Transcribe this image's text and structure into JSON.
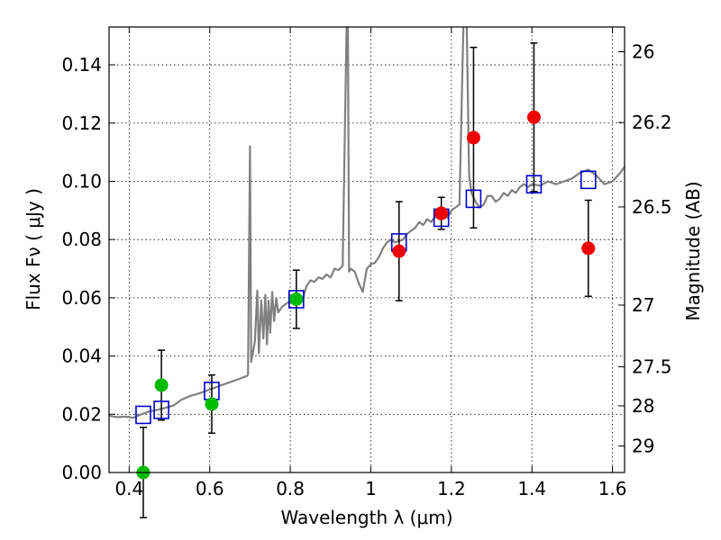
{
  "chart_data": {
    "type": "scatter",
    "title": "",
    "xlabel": "Wavelength  λ (μm)",
    "ylabel": "Flux  Fν  ( μJy )",
    "ylabel_right": "Magnitude (AB)",
    "xlim": [
      0.35,
      1.63
    ],
    "ylim": [
      0.0,
      0.153
    ],
    "grid": true,
    "x_ticks": [
      0.4,
      0.6,
      0.8,
      1.0,
      1.2,
      1.4,
      1.6
    ],
    "x_tick_labels": [
      "0.4",
      "0.6",
      "0.8",
      "1",
      "1.2",
      "1.4",
      "1.6"
    ],
    "y_ticks": [
      0.0,
      0.02,
      0.04,
      0.06,
      0.08,
      0.1,
      0.12,
      0.14
    ],
    "y_tick_labels": [
      "0.00",
      "0.02",
      "0.04",
      "0.06",
      "0.08",
      "0.10",
      "0.12",
      "0.14"
    ],
    "right_ticks": [
      {
        "label": "26",
        "flux": 0.1445
      },
      {
        "label": "26.2",
        "flux": 0.1202
      },
      {
        "label": "26.5",
        "flux": 0.0912
      },
      {
        "label": "27",
        "flux": 0.0575
      },
      {
        "label": "27.5",
        "flux": 0.0363
      },
      {
        "label": "28",
        "flux": 0.0229
      },
      {
        "label": "29",
        "flux": 0.0091
      }
    ],
    "series": [
      {
        "name": "Model spectrum",
        "kind": "line",
        "color": "#808080",
        "points": [
          [
            0.35,
            0.0195
          ],
          [
            0.37,
            0.019
          ],
          [
            0.39,
            0.0192
          ],
          [
            0.41,
            0.0188
          ],
          [
            0.43,
            0.02
          ],
          [
            0.45,
            0.021
          ],
          [
            0.47,
            0.0215
          ],
          [
            0.49,
            0.0222
          ],
          [
            0.51,
            0.023
          ],
          [
            0.53,
            0.025
          ],
          [
            0.55,
            0.0262
          ],
          [
            0.57,
            0.027
          ],
          [
            0.59,
            0.028
          ],
          [
            0.61,
            0.029
          ],
          [
            0.63,
            0.03
          ],
          [
            0.65,
            0.031
          ],
          [
            0.67,
            0.032
          ],
          [
            0.69,
            0.033
          ],
          [
            0.695,
            0.0335
          ],
          [
            0.7,
            0.112
          ],
          [
            0.703,
            0.038
          ],
          [
            0.707,
            0.041
          ],
          [
            0.712,
            0.045
          ],
          [
            0.718,
            0.0625
          ],
          [
            0.722,
            0.041
          ],
          [
            0.728,
            0.059
          ],
          [
            0.733,
            0.046
          ],
          [
            0.738,
            0.061
          ],
          [
            0.742,
            0.044
          ],
          [
            0.746,
            0.059
          ],
          [
            0.75,
            0.048
          ],
          [
            0.755,
            0.062
          ],
          [
            0.76,
            0.052
          ],
          [
            0.765,
            0.06
          ],
          [
            0.77,
            0.055
          ],
          [
            0.78,
            0.057
          ],
          [
            0.79,
            0.058
          ],
          [
            0.8,
            0.059
          ],
          [
            0.81,
            0.0595
          ],
          [
            0.82,
            0.061
          ],
          [
            0.83,
            0.059
          ],
          [
            0.84,
            0.064
          ],
          [
            0.85,
            0.066
          ],
          [
            0.86,
            0.0655
          ],
          [
            0.87,
            0.067
          ],
          [
            0.88,
            0.0665
          ],
          [
            0.89,
            0.068
          ],
          [
            0.9,
            0.067
          ],
          [
            0.91,
            0.07
          ],
          [
            0.92,
            0.0695
          ],
          [
            0.93,
            0.071
          ],
          [
            0.94,
            0.155
          ],
          [
            0.943,
            0.155
          ],
          [
            0.946,
            0.069
          ],
          [
            0.95,
            0.07
          ],
          [
            0.96,
            0.069
          ],
          [
            0.97,
            0.065
          ],
          [
            0.98,
            0.062
          ],
          [
            0.99,
            0.07
          ],
          [
            1.0,
            0.0715
          ],
          [
            1.01,
            0.072
          ],
          [
            1.02,
            0.074
          ],
          [
            1.03,
            0.077
          ],
          [
            1.04,
            0.079
          ],
          [
            1.05,
            0.08
          ],
          [
            1.06,
            0.079
          ],
          [
            1.07,
            0.0795
          ],
          [
            1.08,
            0.08
          ],
          [
            1.09,
            0.082
          ],
          [
            1.1,
            0.083
          ],
          [
            1.11,
            0.084
          ],
          [
            1.12,
            0.086
          ],
          [
            1.13,
            0.085
          ],
          [
            1.14,
            0.087
          ],
          [
            1.15,
            0.086
          ],
          [
            1.16,
            0.088
          ],
          [
            1.17,
            0.087
          ],
          [
            1.18,
            0.089
          ],
          [
            1.19,
            0.0875
          ],
          [
            1.2,
            0.09
          ],
          [
            1.21,
            0.091
          ],
          [
            1.22,
            0.092
          ],
          [
            1.23,
            0.155
          ],
          [
            1.238,
            0.155
          ],
          [
            1.244,
            0.102
          ],
          [
            1.25,
            0.096
          ],
          [
            1.26,
            0.093
          ],
          [
            1.27,
            0.091
          ],
          [
            1.28,
            0.092
          ],
          [
            1.29,
            0.095
          ],
          [
            1.3,
            0.095
          ],
          [
            1.31,
            0.093
          ],
          [
            1.32,
            0.094
          ],
          [
            1.33,
            0.096
          ],
          [
            1.34,
            0.095
          ],
          [
            1.35,
            0.097
          ],
          [
            1.36,
            0.096
          ],
          [
            1.37,
            0.098
          ],
          [
            1.38,
            0.099
          ],
          [
            1.39,
            0.098
          ],
          [
            1.4,
            0.099
          ],
          [
            1.42,
            0.0985
          ],
          [
            1.44,
            0.1
          ],
          [
            1.46,
            0.099
          ],
          [
            1.48,
            0.1
          ],
          [
            1.5,
            0.101
          ],
          [
            1.52,
            0.103
          ],
          [
            1.54,
            0.104
          ],
          [
            1.56,
            0.102
          ],
          [
            1.58,
            0.099
          ],
          [
            1.6,
            0.1
          ],
          [
            1.62,
            0.103
          ],
          [
            1.63,
            0.105
          ]
        ]
      },
      {
        "name": "Model photometry",
        "kind": "open-square",
        "color": "#0000cc",
        "points": [
          {
            "x": 0.435,
            "y": 0.0198
          },
          {
            "x": 0.48,
            "y": 0.0215
          },
          {
            "x": 0.605,
            "y": 0.028
          },
          {
            "x": 0.815,
            "y": 0.0595
          },
          {
            "x": 1.07,
            "y": 0.079
          },
          {
            "x": 1.175,
            "y": 0.0875
          },
          {
            "x": 1.255,
            "y": 0.094
          },
          {
            "x": 1.405,
            "y": 0.099
          },
          {
            "x": 1.54,
            "y": 0.1005
          }
        ]
      },
      {
        "name": "Observed (green)",
        "kind": "filled-circle",
        "color": "#00bb00",
        "points": [
          {
            "x": 0.435,
            "y": 0.0,
            "err": 0.0155
          },
          {
            "x": 0.48,
            "y": 0.03,
            "err": 0.012
          },
          {
            "x": 0.605,
            "y": 0.0235,
            "err": 0.01
          },
          {
            "x": 0.815,
            "y": 0.0595,
            "err": 0.01
          }
        ]
      },
      {
        "name": "Observed (red)",
        "kind": "filled-circle",
        "color": "#ee0000",
        "points": [
          {
            "x": 1.07,
            "y": 0.076,
            "err": 0.017
          },
          {
            "x": 1.175,
            "y": 0.089,
            "err": 0.0055
          },
          {
            "x": 1.255,
            "y": 0.115,
            "err": 0.031
          },
          {
            "x": 1.405,
            "y": 0.122,
            "err": 0.0255
          },
          {
            "x": 1.54,
            "y": 0.077,
            "err": 0.0165
          }
        ]
      }
    ]
  }
}
